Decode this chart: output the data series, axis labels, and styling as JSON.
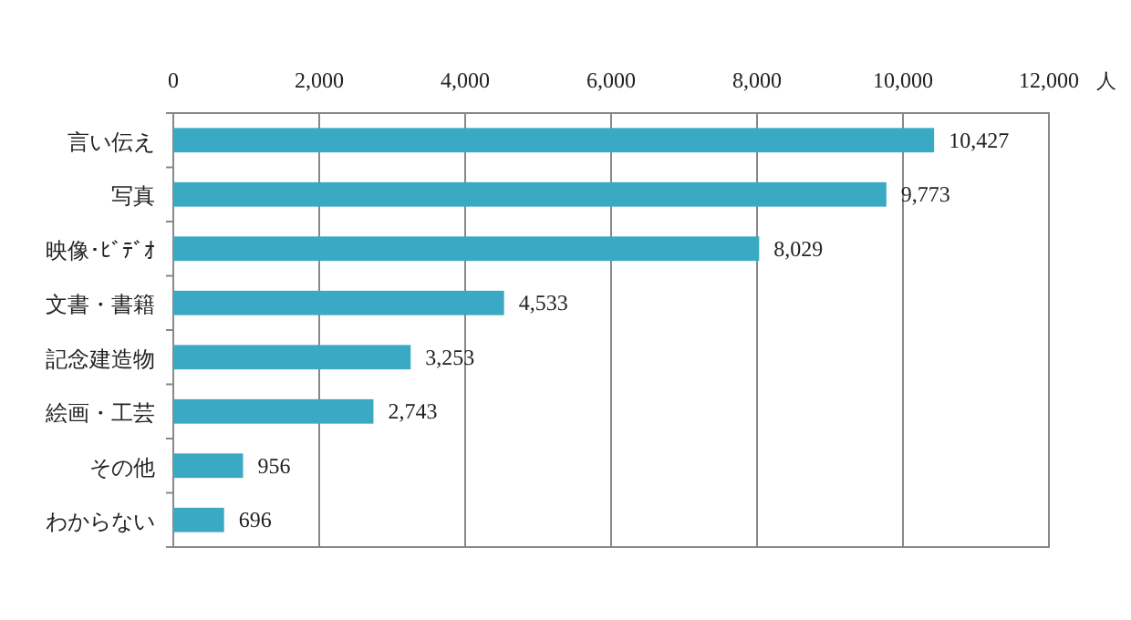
{
  "chart_data": {
    "type": "bar",
    "orientation": "horizontal",
    "xlabel": "人",
    "categories": [
      "言い伝え",
      "写真",
      "映像･ﾋﾞﾃﾞｵ",
      "文書・書籍",
      "記念建造物",
      "絵画・工芸",
      "その他",
      "わからない"
    ],
    "values": [
      10427,
      9773,
      8029,
      4533,
      3253,
      2743,
      956,
      696
    ],
    "value_labels": [
      "10,427",
      "9,773",
      "8,029",
      "4,533",
      "3,253",
      "2,743",
      "956",
      "696"
    ],
    "color": "#3aaac4",
    "xlim": [
      0,
      12000
    ],
    "xticks": [
      0,
      {
        "value": 2000,
        "label": "2,000"
      },
      {
        "value": 4000,
        "label": "4,000"
      },
      {
        "value": 6000,
        "label": "6,000"
      },
      {
        "value": 8000,
        "label": "8,000"
      },
      {
        "value": 10000,
        "label": "10,000"
      },
      {
        "value": 12000,
        "label": "12,000"
      }
    ],
    "grid": "x"
  }
}
